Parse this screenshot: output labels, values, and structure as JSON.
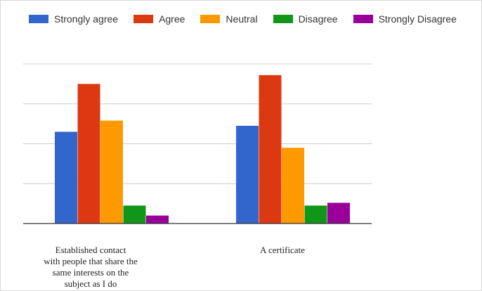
{
  "chart_data": {
    "type": "bar",
    "title": "",
    "xlabel": "",
    "ylabel": "",
    "ylim": [
      0,
      4
    ],
    "grid": true,
    "legend_position": "top",
    "categories": [
      [
        "Established contact",
        "with people that share the",
        "same interests on the",
        "subject as I do"
      ],
      [
        "A certificate"
      ]
    ],
    "series": [
      {
        "name": "Strongly agree",
        "color": "#3366cc",
        "values": [
          2.3,
          2.45
        ]
      },
      {
        "name": "Agree",
        "color": "#dc3912",
        "values": [
          3.5,
          3.72
        ]
      },
      {
        "name": "Neutral",
        "color": "#ff9900",
        "values": [
          2.58,
          1.9
        ]
      },
      {
        "name": "Disagree",
        "color": "#109618",
        "values": [
          0.45,
          0.45
        ]
      },
      {
        "name": "Strongly Disagree",
        "color": "#990099",
        "values": [
          0.2,
          0.52
        ]
      }
    ]
  }
}
